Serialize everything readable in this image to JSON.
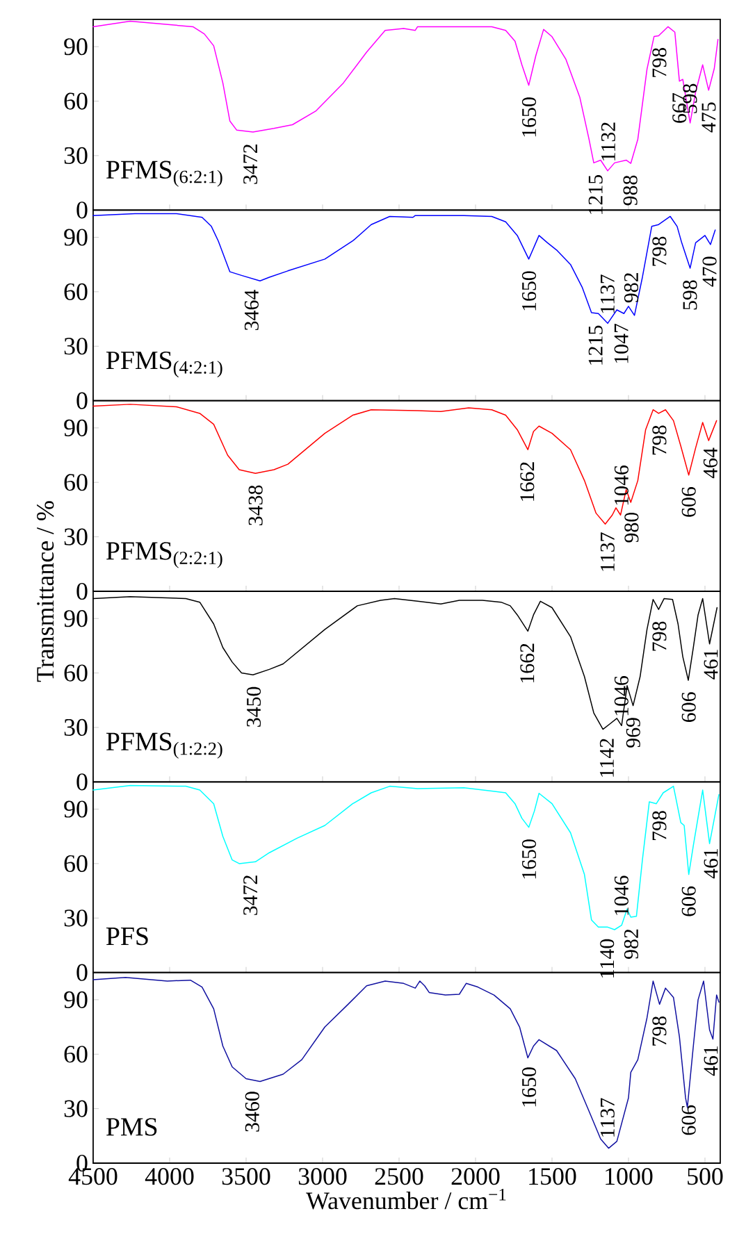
{
  "chart_data": [
    {
      "type": "line",
      "xlim": [
        4500,
        400
      ],
      "ylim": [
        0,
        105
      ],
      "xticks": [
        4500,
        4000,
        3500,
        3000,
        2500,
        2000,
        1500,
        1000,
        500
      ],
      "yticks": [
        0,
        30,
        60,
        90
      ],
      "tick_labels": "y",
      "x": [
        4500,
        4258,
        3985,
        3848,
        3773,
        3712,
        3652,
        3606,
        3561,
        3455,
        3318,
        3197,
        3045,
        2864,
        2712,
        2591,
        2470,
        2394,
        2379,
        1894,
        1803,
        1742,
        1697,
        1652,
        1606,
        1555,
        1500,
        1409,
        1318,
        1258,
        1227,
        1182,
        1136,
        1091,
        1015,
        985,
        939,
        879,
        833,
        803,
        742,
        697,
        667,
        645,
        597,
        561,
        515,
        476,
        439,
        415
      ],
      "series": [
        {
          "name": "PFMS$_{(6:2:1)}$",
          "color": "#ff00ff",
          "values": [
            101,
            104,
            102,
            101,
            97,
            90.5,
            70,
            49,
            44,
            43,
            45,
            47,
            54.5,
            70,
            87,
            99,
            100,
            99,
            101,
            101,
            99,
            93,
            80,
            68.7,
            85,
            99.5,
            95.5,
            83,
            62,
            39,
            26,
            27.5,
            21.6,
            26,
            27.5,
            25.7,
            39,
            77.6,
            95.6,
            96,
            101,
            98,
            71,
            72,
            48,
            65,
            80,
            66,
            78,
            94
          ]
        }
      ],
      "annotations": [
        {
          "text": "3472",
          "x": 3472,
          "y": 43
        },
        {
          "text": "1650",
          "x": 1650,
          "y": 68.7
        },
        {
          "text": "1215",
          "x": 1215,
          "y": 26
        },
        {
          "text": "1132",
          "x": 1132,
          "y": 21.6
        },
        {
          "text": "988",
          "x": 988,
          "y": 25.7
        },
        {
          "text": "798",
          "x": 798,
          "y": 96
        },
        {
          "text": "667",
          "x": 667,
          "y": 71
        },
        {
          "text": "598",
          "x": 598,
          "y": 48
        },
        {
          "text": "475",
          "x": 475,
          "y": 66
        }
      ]
    },
    {
      "type": "line",
      "xlim": [
        4500,
        400
      ],
      "ylim": [
        0,
        105
      ],
      "xticks": [
        4500,
        4000,
        3500,
        3000,
        2500,
        2000,
        1500,
        1000,
        500
      ],
      "yticks": [
        0,
        30,
        60,
        90
      ],
      "tick_labels": "y",
      "x": [
        4500,
        4227,
        3955,
        3788,
        3727,
        3682,
        3606,
        3530,
        3409,
        3348,
        3227,
        2985,
        2803,
        2682,
        2561,
        2409,
        2394,
        2076,
        1894,
        1803,
        1727,
        1652,
        1585,
        1530,
        1470,
        1379,
        1303,
        1242,
        1197,
        1136,
        1076,
        1030,
        1000,
        961,
        909,
        848,
        803,
        727,
        682,
        652,
        597,
        561,
        500,
        464,
        433
      ],
      "series": [
        {
          "name": "PFMS$_{(4:2:1)}$",
          "color": "#0000ff",
          "values": [
            102,
            103,
            103,
            101,
            96,
            88,
            71,
            69,
            66,
            68,
            71.5,
            78,
            88,
            97,
            101.5,
            101,
            102,
            102,
            101.5,
            98.5,
            91,
            78,
            91,
            87,
            83,
            75,
            62.5,
            48.5,
            48,
            42.6,
            50,
            48,
            52,
            47,
            68,
            96,
            97,
            101.5,
            96,
            87,
            73,
            87,
            91,
            86,
            94
          ]
        }
      ],
      "annotations": [
        {
          "text": "3464",
          "x": 3464,
          "y": 67.5
        },
        {
          "text": "1650",
          "x": 1650,
          "y": 78
        },
        {
          "text": "1215",
          "x": 1215,
          "y": 48
        },
        {
          "text": "1137",
          "x": 1137,
          "y": 42.6
        },
        {
          "text": "1047",
          "x": 1047,
          "y": 49
        },
        {
          "text": "982",
          "x": 982,
          "y": 49
        },
        {
          "text": "798",
          "x": 798,
          "y": 97
        },
        {
          "text": "598",
          "x": 598,
          "y": 73
        },
        {
          "text": "470",
          "x": 470,
          "y": 86
        }
      ]
    },
    {
      "type": "line",
      "xlim": [
        4500,
        400
      ],
      "ylim": [
        0,
        105
      ],
      "xticks": [
        4500,
        4000,
        3500,
        3000,
        2500,
        2000,
        1500,
        1000,
        500
      ],
      "yticks": [
        0,
        30,
        60,
        90
      ],
      "tick_labels": "y",
      "ylabel": "Transmittance / %",
      "x": [
        4500,
        4258,
        3955,
        3803,
        3712,
        3621,
        3545,
        3439,
        3318,
        3227,
        2985,
        2803,
        2682,
        2379,
        2227,
        2045,
        1894,
        1803,
        1727,
        1658,
        1621,
        1585,
        1500,
        1379,
        1288,
        1212,
        1152,
        1106,
        1082,
        1052,
        1015,
        985,
        939,
        888,
        839,
        803,
        758,
        706,
        658,
        606,
        561,
        515,
        476,
        424
      ],
      "series": [
        {
          "name": "PFMS$_{(2:2:1)}$",
          "color": "#ff0000",
          "values": [
            102,
            103,
            101.6,
            98,
            92,
            75,
            67,
            65,
            67,
            70,
            87,
            97,
            100,
            99.5,
            99,
            101,
            100,
            97,
            89,
            78,
            88,
            91,
            87,
            78,
            61,
            43,
            37,
            42,
            46,
            42,
            56,
            49,
            61,
            89,
            100,
            98,
            100,
            94,
            80,
            64,
            79,
            93,
            83,
            94
          ]
        }
      ],
      "annotations": [
        {
          "text": "3438",
          "x": 3438,
          "y": 65
        },
        {
          "text": "1662",
          "x": 1662,
          "y": 78
        },
        {
          "text": "1137",
          "x": 1137,
          "y": 39
        },
        {
          "text": "1046",
          "x": 1046,
          "y": 42
        },
        {
          "text": "980",
          "x": 980,
          "y": 50
        },
        {
          "text": "798",
          "x": 798,
          "y": 98
        },
        {
          "text": "606",
          "x": 606,
          "y": 64
        },
        {
          "text": "464",
          "x": 464,
          "y": 85.5
        }
      ]
    },
    {
      "type": "line",
      "xlim": [
        4500,
        400
      ],
      "ylim": [
        0,
        105
      ],
      "xticks": [
        4500,
        4000,
        3500,
        3000,
        2500,
        2000,
        1500,
        1000,
        500
      ],
      "yticks": [
        0,
        30,
        60,
        90
      ],
      "tick_labels": "y",
      "x": [
        4500,
        4258,
        3894,
        3803,
        3712,
        3652,
        3591,
        3530,
        3455,
        3348,
        3258,
        2985,
        2773,
        2621,
        2530,
        2379,
        2227,
        2106,
        1955,
        1833,
        1773,
        1727,
        1658,
        1621,
        1576,
        1500,
        1379,
        1288,
        1227,
        1167,
        1121,
        1076,
        1045,
        1009,
        970,
        924,
        879,
        839,
        803,
        767,
        712,
        676,
        645,
        609,
        576,
        545,
        515,
        470,
        421
      ],
      "series": [
        {
          "name": "PFMS$_{(1:2:2)}$",
          "color": "#000000",
          "values": [
            101,
            102,
            101,
            99,
            87,
            74,
            66,
            60,
            59,
            62,
            65,
            84,
            97,
            100,
            101,
            99.5,
            98,
            100,
            100,
            99,
            97,
            92,
            83,
            92,
            99.5,
            96,
            80,
            58,
            38,
            29,
            32,
            35,
            31,
            53,
            42,
            58,
            84,
            100.5,
            95,
            101,
            100.5,
            87,
            69,
            56,
            74,
            92,
            101,
            76,
            96
          ]
        }
      ],
      "annotations": [
        {
          "text": "3450",
          "x": 3450,
          "y": 59
        },
        {
          "text": "1662",
          "x": 1662,
          "y": 83
        },
        {
          "text": "1142",
          "x": 1142,
          "y": 30.6
        },
        {
          "text": "1046",
          "x": 1046,
          "y": 31
        },
        {
          "text": "969",
          "x": 969,
          "y": 42
        },
        {
          "text": "798",
          "x": 798,
          "y": 95
        },
        {
          "text": "606",
          "x": 606,
          "y": 56
        },
        {
          "text": "461",
          "x": 461,
          "y": 79.7
        }
      ]
    },
    {
      "type": "line",
      "xlim": [
        4500,
        400
      ],
      "ylim": [
        0,
        105
      ],
      "xticks": [
        4500,
        4000,
        3500,
        3000,
        2500,
        2000,
        1500,
        1000,
        500
      ],
      "yticks": [
        0,
        30,
        60,
        90
      ],
      "tick_labels": "y",
      "x": [
        4500,
        4258,
        3894,
        3803,
        3712,
        3652,
        3591,
        3545,
        3439,
        3348,
        3167,
        2985,
        2803,
        2682,
        2561,
        2379,
        2076,
        1894,
        1803,
        1742,
        1697,
        1652,
        1615,
        1585,
        1500,
        1379,
        1288,
        1242,
        1197,
        1136,
        1091,
        1045,
        1009,
        985,
        948,
        909,
        864,
        818,
        773,
        706,
        658,
        636,
        606,
        576,
        515,
        470,
        409
      ],
      "series": [
        {
          "name": "PFS",
          "color": "#00ffff",
          "values": [
            100.5,
            103,
            102.6,
            100.5,
            93,
            75,
            62,
            60,
            61,
            66,
            74,
            81,
            93,
            99,
            102.6,
            101.3,
            101.8,
            100,
            99,
            93,
            85,
            80,
            89,
            98.7,
            93,
            77,
            54,
            29,
            25,
            25,
            23.6,
            26,
            35,
            30.5,
            31,
            62,
            94,
            93,
            99,
            102.6,
            82.6,
            81,
            54,
            70,
            100.5,
            71,
            98
          ]
        }
      ],
      "annotations": [
        {
          "text": "3472",
          "x": 3472,
          "y": 60.3
        },
        {
          "text": "1650",
          "x": 1650,
          "y": 80
        },
        {
          "text": "1140",
          "x": 1140,
          "y": 25
        },
        {
          "text": "1046",
          "x": 1046,
          "y": 26
        },
        {
          "text": "982",
          "x": 982,
          "y": 30.6
        },
        {
          "text": "798",
          "x": 798,
          "y": 95.7
        },
        {
          "text": "606",
          "x": 606,
          "y": 54
        },
        {
          "text": "461",
          "x": 461,
          "y": 75
        }
      ]
    },
    {
      "type": "line",
      "xlim": [
        4500,
        400
      ],
      "ylim": [
        0,
        105
      ],
      "xticks": [
        4500,
        4000,
        3500,
        3000,
        2500,
        2000,
        1500,
        1000,
        500
      ],
      "yticks": [
        0,
        30,
        60,
        90
      ],
      "xlabel": "Wavenumber / cm$^{−1}$",
      "x": [
        4500,
        4288,
        4015,
        3864,
        3788,
        3712,
        3652,
        3591,
        3500,
        3409,
        3258,
        3136,
        2985,
        2833,
        2712,
        2591,
        2470,
        2394,
        2364,
        2333,
        2303,
        2197,
        2106,
        2061,
        1985,
        1879,
        1773,
        1712,
        1658,
        1621,
        1585,
        1470,
        1348,
        1258,
        1182,
        1130,
        1076,
        1000,
        985,
        939,
        879,
        839,
        797,
        758,
        706,
        667,
        627,
        615,
        576,
        545,
        509,
        470,
        448,
        424,
        409
      ],
      "series": [
        {
          "name": "PMS",
          "color": "#1010a0",
          "values": [
            101,
            102.3,
            100.3,
            100.8,
            97,
            85,
            64.5,
            53,
            46.5,
            45,
            49,
            57,
            75,
            87.5,
            97.7,
            100.3,
            99,
            96.4,
            100.3,
            97.7,
            94,
            92.6,
            93,
            99,
            97,
            92.6,
            85,
            75,
            58,
            64.5,
            68,
            62,
            46.5,
            28.6,
            13.3,
            8.2,
            12,
            36,
            50,
            57,
            80,
            100.3,
            87.5,
            96.4,
            91.3,
            69.6,
            36,
            30.7,
            64.5,
            90,
            100.3,
            73.4,
            68.3,
            92.6,
            88.7
          ]
        }
      ],
      "annotations": [
        {
          "text": "3460",
          "x": 3460,
          "y": 46
        },
        {
          "text": "1650",
          "x": 1650,
          "y": 59.4
        },
        {
          "text": "1137",
          "x": 1137,
          "y": 8.9
        },
        {
          "text": "798",
          "x": 798,
          "y": 87.5
        },
        {
          "text": "606",
          "x": 606,
          "y": 38.5
        },
        {
          "text": "461",
          "x": 461,
          "y": 71.3
        }
      ]
    }
  ]
}
